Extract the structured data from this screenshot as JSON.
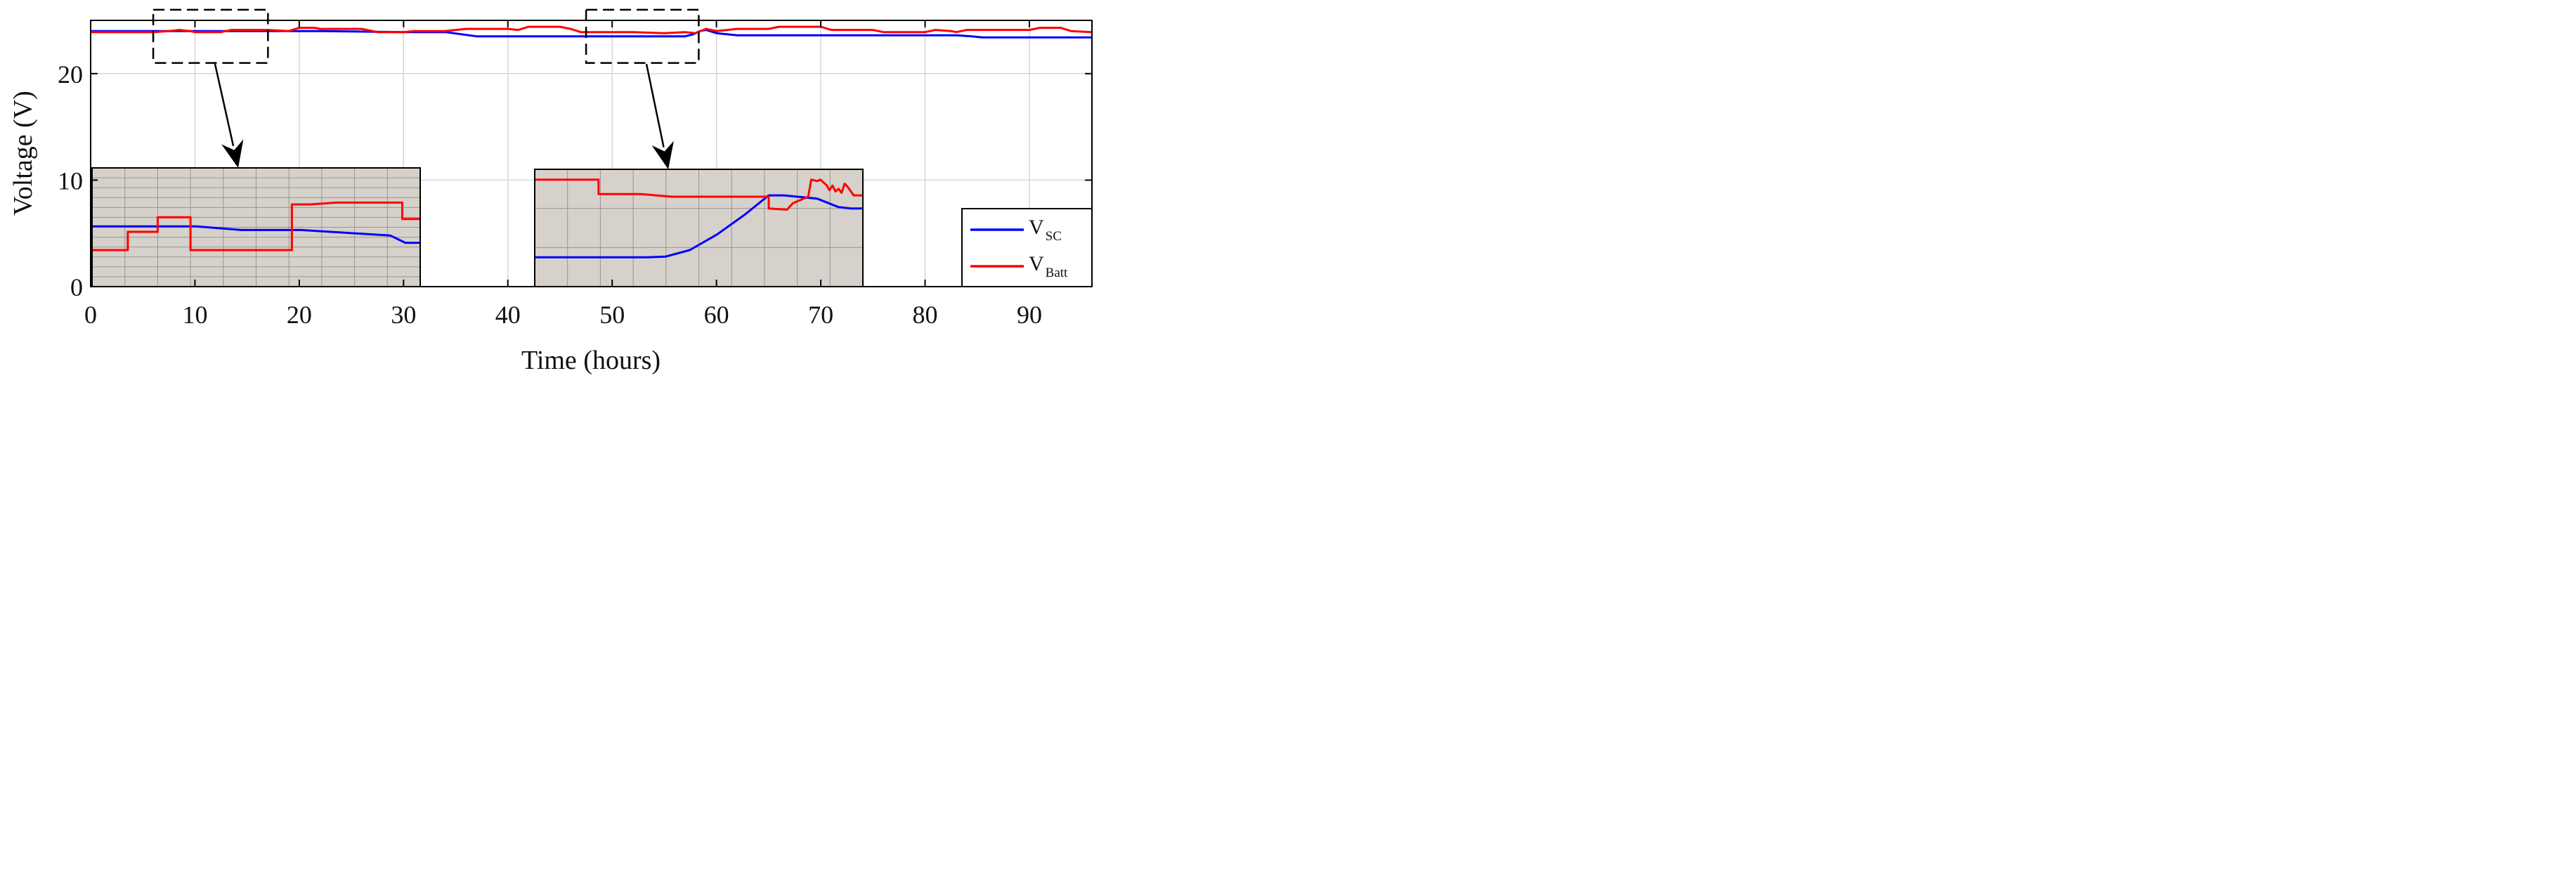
{
  "chart_data": {
    "type": "line",
    "xlabel": "Time (hours)",
    "ylabel": "Voltage (V)",
    "xlim": [
      0,
      96
    ],
    "ylim": [
      0,
      25
    ],
    "xticks": [
      0,
      10,
      20,
      30,
      40,
      50,
      60,
      70,
      80,
      90
    ],
    "yticks": [
      0,
      10,
      20
    ],
    "grid": true,
    "legend_position": "bottom-right",
    "series": [
      {
        "name": "V_SC",
        "label_main": "V",
        "label_sub": "SC",
        "color": "#0000ff",
        "x": [
          0,
          10,
          15,
          22,
          30,
          34,
          35.5,
          37,
          40,
          45,
          50,
          55,
          57,
          57.8,
          58.4,
          59,
          60,
          62,
          65,
          70,
          75,
          80,
          83,
          84.5,
          85.5,
          87,
          90,
          96
        ],
        "y": [
          24.0,
          24.0,
          24.0,
          24.0,
          23.9,
          23.9,
          23.7,
          23.5,
          23.5,
          23.5,
          23.5,
          23.5,
          23.5,
          23.7,
          24.0,
          24.1,
          23.8,
          23.6,
          23.6,
          23.6,
          23.6,
          23.6,
          23.6,
          23.5,
          23.4,
          23.4,
          23.4,
          23.4
        ]
      },
      {
        "name": "V_Batt",
        "label_main": "V",
        "label_sub": "Batt",
        "color": "#ff0000",
        "x": [
          0,
          6,
          7.5,
          8.5,
          9.5,
          10,
          12.5,
          13.5,
          16,
          17,
          19,
          20,
          21.5,
          22,
          26,
          27.5,
          30,
          31,
          34,
          36,
          40,
          41,
          42,
          45,
          46,
          47,
          49,
          52,
          55,
          57,
          58,
          59,
          60,
          62,
          65,
          66,
          70,
          71,
          75,
          76,
          80,
          81,
          82.5,
          83,
          84,
          86,
          90,
          91,
          93,
          94,
          96
        ],
        "y": [
          23.9,
          23.9,
          24.0,
          24.1,
          24.0,
          23.9,
          23.9,
          24.1,
          24.1,
          24.1,
          24.0,
          24.3,
          24.3,
          24.2,
          24.2,
          23.9,
          23.9,
          24.0,
          24.0,
          24.2,
          24.2,
          24.1,
          24.4,
          24.4,
          24.2,
          23.9,
          23.9,
          23.9,
          23.8,
          23.9,
          23.8,
          24.2,
          24.0,
          24.2,
          24.2,
          24.4,
          24.4,
          24.1,
          24.1,
          23.9,
          23.9,
          24.1,
          24.0,
          23.9,
          24.1,
          24.1,
          24.1,
          24.3,
          24.3,
          24.0,
          23.9
        ]
      }
    ],
    "insets": [
      {
        "source_window": {
          "x": [
            6,
            17
          ],
          "y": [
            21,
            26
          ]
        },
        "inset_x": [
          6,
          17
        ],
        "inset_y": [
          23.75,
          24.4
        ],
        "series": [
          {
            "name": "V_SC",
            "x": [
              6,
              9.5,
              11,
              12,
              13,
              14,
              15,
              16,
              16.5,
              17
            ],
            "y": [
              24.08,
              24.08,
              24.06,
              24.06,
              24.06,
              24.05,
              24.04,
              24.03,
              23.99,
              23.99
            ]
          },
          {
            "name": "V_Batt",
            "x": [
              6,
              7.2,
              7.2,
              8.2,
              8.2,
              9.3,
              9.3,
              10.8,
              10.8,
              12.7,
              12.7,
              13.3,
              14.2,
              15.0,
              16.4,
              16.4,
              17
            ],
            "y": [
              23.95,
              23.95,
              24.05,
              24.05,
              24.13,
              24.13,
              23.95,
              23.95,
              23.95,
              23.95,
              24.2,
              24.2,
              24.21,
              24.21,
              24.21,
              24.12,
              24.12
            ]
          }
        ]
      },
      {
        "source_window": {
          "x": [
            47.5,
            58.3
          ],
          "y": [
            21,
            26
          ]
        },
        "inset_x": [
          47.5,
          58.3
        ],
        "inset_y": [
          22.8,
          24.6
        ],
        "series": [
          {
            "name": "V_SC",
            "x": [
              47.5,
              51.2,
              51.8,
              52.6,
              53.5,
              54.4,
              55.2,
              55.7,
              56.8,
              57.5,
              57.9,
              58.3
            ],
            "y": [
              23.25,
              23.25,
              23.26,
              23.36,
              23.6,
              23.9,
              24.2,
              24.2,
              24.15,
              24.02,
              24.0,
              24.0
            ]
          },
          {
            "name": "V_Batt",
            "x": [
              47.5,
              49.6,
              49.6,
              51.0,
              52.0,
              54.0,
              55.2,
              55.2,
              55.8,
              56.0,
              56.5,
              56.6,
              56.8,
              56.9,
              57.0,
              57.1,
              57.2,
              57.3,
              57.4,
              57.5,
              57.6,
              57.7,
              57.8,
              58.0,
              58.3
            ],
            "y": [
              24.44,
              24.44,
              24.22,
              24.22,
              24.18,
              24.18,
              24.18,
              24.0,
              23.98,
              24.08,
              24.18,
              24.44,
              24.42,
              24.44,
              24.4,
              24.36,
              24.28,
              24.35,
              24.26,
              24.3,
              24.24,
              24.38,
              24.33,
              24.2,
              24.2
            ]
          }
        ]
      }
    ]
  }
}
